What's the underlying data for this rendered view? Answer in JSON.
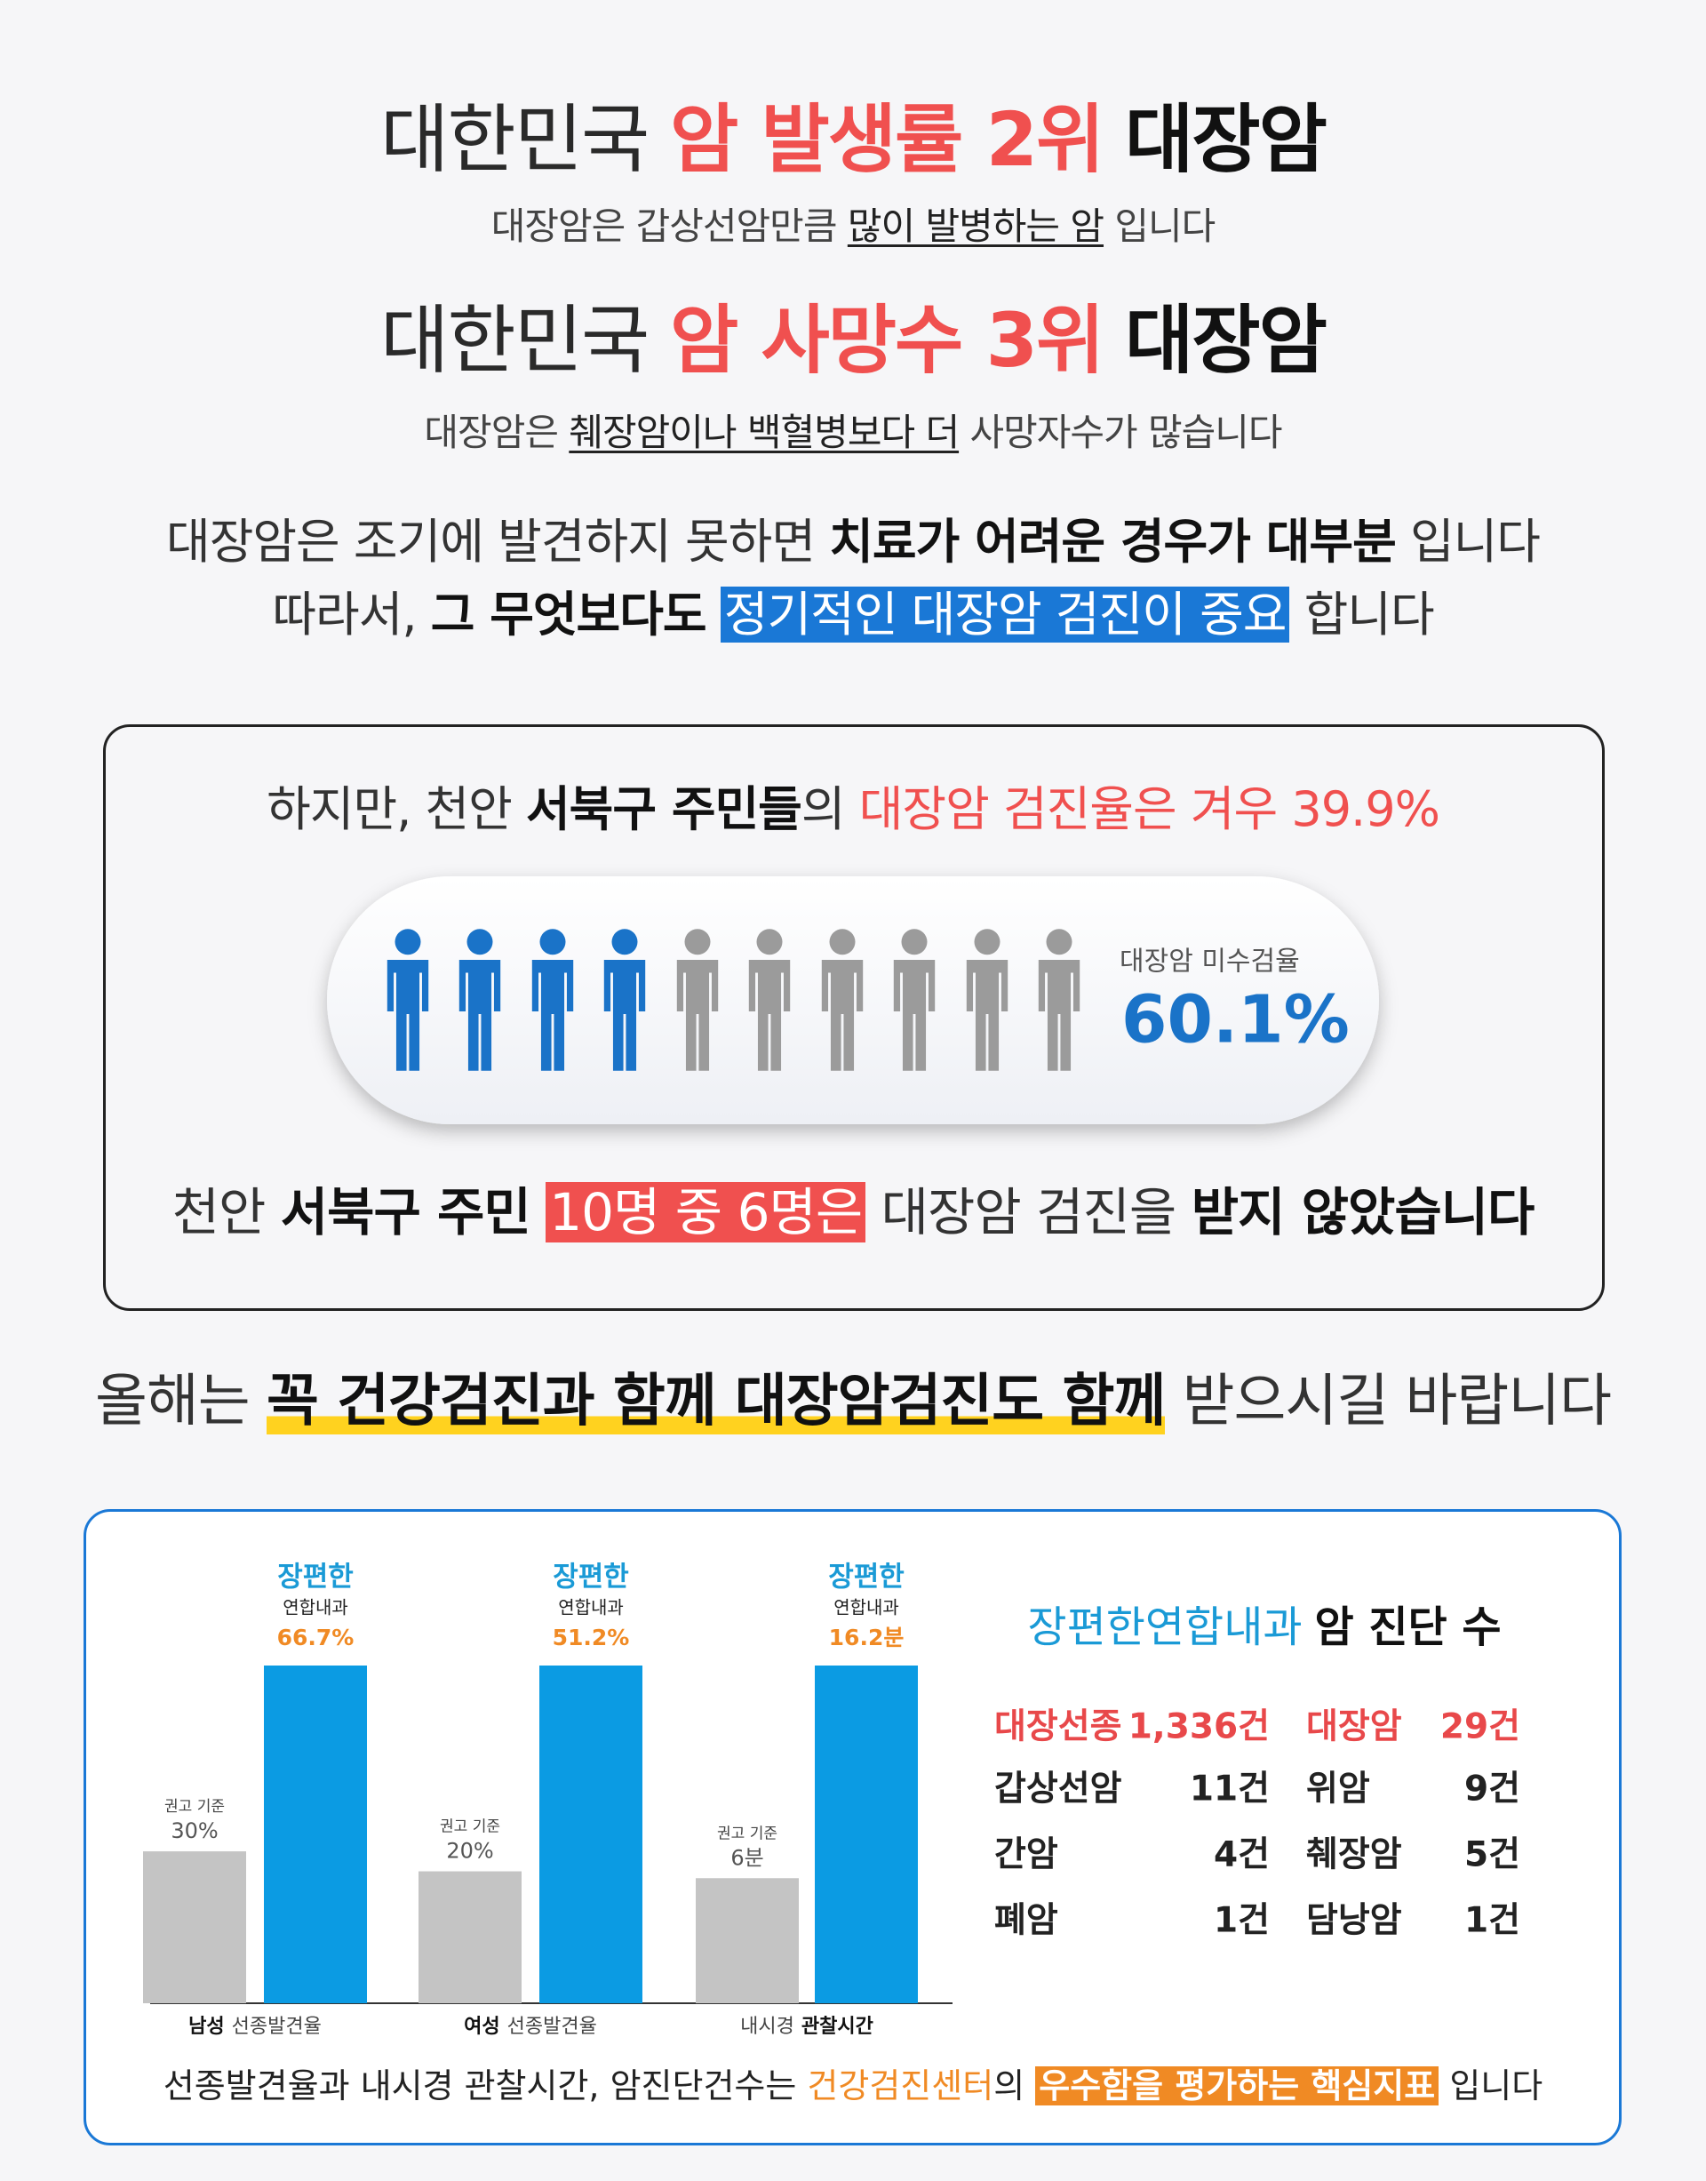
{
  "headline_1": {
    "normal": "대한민국",
    "highlight": "암 발생률 2위",
    "bold": "대장암"
  },
  "sub_1": {
    "before": "대장암은 갑상선암만큼",
    "underline": "많이 발병하는 암",
    "after": "입니다"
  },
  "headline_2": {
    "normal": "대한민국",
    "highlight": "암 사망수 3위",
    "bold": "대장암"
  },
  "sub_2": {
    "before": "대장암은",
    "underline": "췌장암이나 백혈병보다 더",
    "after": "사망자수가 많습니다"
  },
  "message": {
    "line_1": {
      "normal": "대장암은 조기에 발견하지 못하면",
      "bold": "치료가 어려운 경우가 대부분",
      "after": "입니다"
    },
    "line_2": {
      "normal": "따라서,",
      "bold": "그 무엇보다도",
      "highlight": "정기적인 대장암 검진이 중요",
      "after": "합니다"
    }
  },
  "screening_box": {
    "intro": {
      "normal": "하지만, 천안",
      "bold": "서북구 주민들",
      "suffix": "의",
      "red": "대장암 검진율은 겨우 39.9%"
    },
    "unscreened_label": "대장암 미수검율",
    "unscreened_rate": "60.1%",
    "conclusion": {
      "normal": "천안",
      "bold": "서북구 주민",
      "highlight": "10명 중 6명은",
      "middle": "대장암 검진을",
      "bold_end": "받지 않았습니다"
    }
  },
  "call_to_action": {
    "normal": "올해는",
    "highlight": "꼭 건강검진과 함께 대장암검진도 함께",
    "after": "받으시길 바랍니다"
  },
  "performance": {
    "chart": {
      "standard_color": "#c4c4c4",
      "clinic_color": "#0b9be3",
      "groups": [
        {
          "category": [
            {
              "text": "남성",
              "bold": true
            },
            {
              "text": "선종발견율",
              "bold": false
            }
          ],
          "standard_caption": "권고 기준",
          "standard_value": 30,
          "standard_label": "30%",
          "clinic_name": "장편한",
          "clinic_subname": "연합내과",
          "clinic_value": 66.7,
          "clinic_label": "66.7%"
        },
        {
          "category": [
            {
              "text": "여성",
              "bold": true
            },
            {
              "text": "선종발견율",
              "bold": false
            }
          ],
          "standard_caption": "권고 기준",
          "standard_value": 20,
          "standard_label": "20%",
          "clinic_name": "장편한",
          "clinic_subname": "연합내과",
          "clinic_value": 51.2,
          "clinic_label": "51.2%"
        },
        {
          "category": [
            {
              "text": "내시경",
              "bold": false
            },
            {
              "text": "관찰시간",
              "bold": true
            }
          ],
          "standard_caption": "권고 기준",
          "standard_value": 6,
          "standard_label": "6분",
          "clinic_name": "장편한",
          "clinic_subname": "연합내과",
          "clinic_value": 16.2,
          "clinic_label": "16.2분"
        }
      ]
    },
    "table": {
      "title": {
        "blue": "장편한연합내과",
        "bold": "암 진단 수"
      },
      "rows": [
        [
          "대장선종",
          "1,336건",
          "대장암",
          "29건"
        ],
        [
          "갑상선암",
          "11건",
          "위암",
          "9건"
        ],
        [
          "간암",
          "4건",
          "췌장암",
          "5건"
        ],
        [
          "폐암",
          "1건",
          "담낭암",
          "1건"
        ]
      ]
    },
    "footer": {
      "normal": "선종발견율과 내시경 관찰시간, 암진단건수는",
      "orange": "건강검진센터",
      "suffix": "의",
      "highlight": "우수함을 평가하는 핵심지표",
      "after": "입니다"
    }
  }
}
